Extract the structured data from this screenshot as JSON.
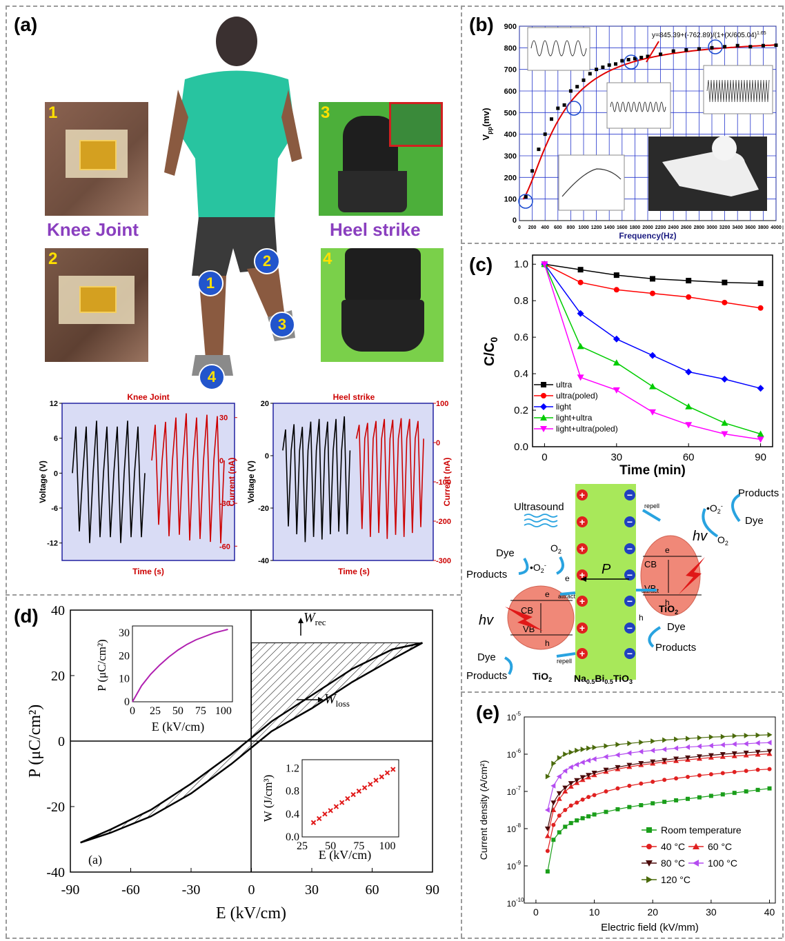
{
  "labels": {
    "a": "(a)",
    "b": "(b)",
    "c": "(c)",
    "d": "(d)",
    "e": "(e)"
  },
  "panel_a": {
    "photo_left_title": "Knee Joint",
    "photo_right_title": "Heel strike",
    "photo_numbers": [
      "1",
      "2",
      "3",
      "4"
    ],
    "body_markers": [
      "1",
      "2",
      "3",
      "4"
    ]
  },
  "panel_b_photo": {
    "inset_count": 4
  },
  "mechanism": {
    "ultrasound": "Ultrasound",
    "dye": "Dye",
    "products": "Products",
    "o2": "O",
    "o2_sub": "2",
    "o2_radical": "•O",
    "o2_radical_sub": "2",
    "o2_radical_sup": "-",
    "cb": "CB",
    "vb": "VB",
    "tio2": "TiO",
    "tio2_sub": "2",
    "hv": "hv",
    "p": "P",
    "e_minus": "e",
    "h_plus": "h",
    "repell": "repell",
    "attract": "attract",
    "nbt": "Na",
    "nbt_sub1": "0.5",
    "nbt_mid": "Bi",
    "nbt_sub2": "0.5",
    "nbt_end": "TiO",
    "nbt_sub3": "3"
  },
  "chart_data": [
    {
      "id": "a-knee",
      "type": "line",
      "title": "Knee Joint",
      "xlabel": "Time (s)",
      "ylabel": "Voltage (V)",
      "ylabel_right": "Current (nA)",
      "ylim": [
        -15,
        12
      ],
      "yticks": [
        12,
        6,
        0,
        -6,
        -12
      ],
      "ylim_right": [
        -70,
        40
      ],
      "yticks_right": [
        30,
        0,
        -30,
        -60
      ],
      "colors": {
        "voltage": "#000000",
        "current": "#cc0000",
        "bg": "#d9dcf5"
      },
      "series": [
        {
          "name": "Voltage",
          "values": [
            0,
            8,
            -10,
            0,
            8,
            -12,
            0,
            9,
            -11,
            0,
            8,
            -11,
            0,
            8,
            -12,
            0,
            9,
            -11,
            0,
            8,
            -11,
            0
          ]
        },
        {
          "name": "Current",
          "values": [
            0,
            25,
            -45,
            0,
            27,
            -53,
            0,
            30,
            -52,
            0,
            33,
            -56,
            0,
            30,
            -55,
            0,
            32,
            -57,
            0,
            31,
            -58,
            0
          ]
        }
      ]
    },
    {
      "id": "a-heel",
      "type": "line",
      "title": "Heel strike",
      "xlabel": "Time (s)",
      "ylabel": "Voltage (V)",
      "ylabel_right": "Current (nA)",
      "ylim": [
        -40,
        20
      ],
      "yticks": [
        20,
        0,
        -20,
        -40
      ],
      "ylim_right": [
        -300,
        100
      ],
      "yticks_right": [
        100,
        0,
        -100,
        -200,
        -300
      ],
      "colors": {
        "voltage": "#000000",
        "current": "#cc0000",
        "bg": "#d9dcf5"
      },
      "series": [
        {
          "name": "Voltage",
          "values": [
            2,
            10,
            -27,
            2,
            12,
            -30,
            2,
            11,
            -33,
            2,
            13,
            -31,
            2,
            14,
            -32,
            2,
            13,
            -30,
            2,
            14,
            -29,
            2,
            15,
            -30,
            2
          ]
        },
        {
          "name": "Current",
          "values": [
            10,
            45,
            -220,
            10,
            50,
            -240,
            10,
            55,
            -230,
            10,
            60,
            -245,
            10,
            58,
            -235,
            10,
            62,
            -240,
            10,
            60,
            -230,
            10,
            55,
            -215,
            10
          ]
        }
      ]
    },
    {
      "id": "b",
      "type": "scatter",
      "xlabel": "Frequency(Hz)",
      "ylabel": "V",
      "ylabel_sub": "pp",
      "ylabel_unit": "(mv)",
      "xlim": [
        0,
        4000
      ],
      "ylim": [
        0,
        900
      ],
      "xticks": [
        0,
        200,
        400,
        600,
        800,
        1000,
        1200,
        1400,
        1600,
        1800,
        2000,
        2200,
        2400,
        2600,
        2800,
        3000,
        3200,
        3400,
        3600,
        3800,
        4000
      ],
      "yticks": [
        100,
        200,
        300,
        400,
        500,
        600,
        700,
        800,
        900
      ],
      "fit_equation": "y=845.39+(-762.89)/(1+(X/605.04)",
      "fit_exponent": "1.65",
      "colors": {
        "points": "#000000",
        "fit": "#e00000",
        "grid": "#2233cc"
      },
      "x": [
        100,
        200,
        300,
        400,
        500,
        600,
        700,
        800,
        900,
        1000,
        1100,
        1200,
        1300,
        1400,
        1500,
        1600,
        1700,
        1800,
        1900,
        2000,
        2200,
        2400,
        2600,
        2800,
        3000,
        3200,
        3400,
        3600,
        3800,
        4000
      ],
      "y": [
        110,
        230,
        330,
        400,
        470,
        520,
        535,
        600,
        620,
        650,
        680,
        700,
        710,
        720,
        725,
        740,
        745,
        750,
        755,
        760,
        770,
        785,
        790,
        795,
        800,
        805,
        810,
        805,
        810,
        812
      ]
    },
    {
      "id": "c",
      "type": "line",
      "xlabel": "Time (min)",
      "ylabel": "C/C",
      "ylabel_sub": "0",
      "xlim": [
        -5,
        95
      ],
      "ylim": [
        0.0,
        1.05
      ],
      "xticks": [
        0,
        30,
        60,
        90
      ],
      "yticks": [
        0.0,
        0.2,
        0.4,
        0.6,
        0.8,
        1.0
      ],
      "x": [
        0,
        15,
        30,
        45,
        60,
        75,
        90
      ],
      "series": [
        {
          "name": "ultra",
          "color": "#000000",
          "marker": "square",
          "values": [
            1.0,
            0.97,
            0.94,
            0.92,
            0.91,
            0.9,
            0.895
          ]
        },
        {
          "name": "ultra(poled)",
          "color": "#ff0000",
          "marker": "circle",
          "values": [
            1.0,
            0.9,
            0.86,
            0.84,
            0.82,
            0.79,
            0.76
          ]
        },
        {
          "name": "light",
          "color": "#0000ff",
          "marker": "diamond",
          "values": [
            1.0,
            0.73,
            0.59,
            0.5,
            0.41,
            0.37,
            0.32
          ]
        },
        {
          "name": "light+ultra",
          "color": "#00cc00",
          "marker": "triangle-up",
          "values": [
            1.0,
            0.55,
            0.46,
            0.33,
            0.22,
            0.13,
            0.07
          ]
        },
        {
          "name": "light+ultra(poled)",
          "color": "#ff00ff",
          "marker": "triangle-down",
          "values": [
            1.0,
            0.38,
            0.31,
            0.19,
            0.12,
            0.07,
            0.04
          ]
        }
      ]
    },
    {
      "id": "d",
      "type": "line",
      "xlabel": "E (kV/cm)",
      "ylabel": "P (μC/cm²)",
      "xlim": [
        -90,
        90
      ],
      "ylim": [
        -40,
        40
      ],
      "xticks": [
        -90,
        -60,
        -30,
        0,
        30,
        60,
        90
      ],
      "yticks": [
        40,
        20,
        0,
        -20,
        -40
      ],
      "sublabel": "(a)",
      "annotations": [
        "W",
        "rec",
        "W",
        "loss"
      ],
      "series": [
        {
          "name": "upper",
          "values_x": [
            -85,
            -70,
            -50,
            -30,
            -10,
            0,
            10,
            30,
            50,
            70,
            85
          ],
          "values_y": [
            -31,
            -27,
            -21,
            -13,
            -4,
            1,
            6,
            14,
            22,
            28,
            30
          ]
        },
        {
          "name": "lower",
          "values_x": [
            -85,
            -70,
            -50,
            -30,
            -10,
            0,
            10,
            30,
            50,
            70,
            85
          ],
          "values_y": [
            -31,
            -28,
            -23,
            -16,
            -7,
            -2,
            3,
            10,
            18,
            25,
            30
          ]
        }
      ],
      "insets": [
        {
          "type": "line",
          "xlabel": "E (kV/cm)",
          "ylabel": "P (μC/cm²)",
          "xticks": [
            0,
            25,
            50,
            75,
            100
          ],
          "yticks": [
            0,
            10,
            20,
            30
          ],
          "xlim": [
            0,
            110
          ],
          "ylim": [
            0,
            33
          ],
          "x": [
            0,
            10,
            20,
            30,
            40,
            50,
            60,
            70,
            80,
            90,
            100,
            105
          ],
          "y": [
            0,
            7,
            12,
            16,
            19.5,
            22.5,
            25,
            27,
            28.5,
            30,
            31,
            31.5
          ]
        },
        {
          "type": "scatter",
          "xlabel": "E (kV/cm)",
          "ylabel": "W (J/cm³)",
          "xticks": [
            25,
            50,
            75,
            100
          ],
          "yticks": [
            0.0,
            0.4,
            0.8,
            1.2
          ],
          "xlim": [
            25,
            110
          ],
          "ylim": [
            0,
            1.35
          ],
          "x": [
            35,
            40,
            45,
            50,
            55,
            60,
            65,
            70,
            75,
            80,
            85,
            90,
            95,
            100,
            105
          ],
          "y": [
            0.25,
            0.32,
            0.4,
            0.46,
            0.53,
            0.6,
            0.67,
            0.74,
            0.8,
            0.86,
            0.92,
            0.99,
            1.05,
            1.12,
            1.18
          ]
        }
      ]
    },
    {
      "id": "e",
      "type": "line",
      "xlabel": "Electric field (kV/mm)",
      "ylabel": "Current density (A/cm²)",
      "yscale": "log",
      "xlim": [
        -2,
        41
      ],
      "ylim_exp": [
        -10,
        -5
      ],
      "xticks": [
        0,
        10,
        20,
        30,
        40
      ],
      "x": [
        2,
        3,
        4,
        5,
        6,
        7,
        8,
        9,
        10,
        12,
        14,
        16,
        18,
        20,
        22,
        24,
        26,
        28,
        30,
        32,
        34,
        36,
        38,
        40
      ],
      "series": [
        {
          "name": "Room temperature",
          "color": "#1a9e1a",
          "marker": "square",
          "exp": [
            -9.15,
            -8.3,
            -8.1,
            -7.95,
            -7.85,
            -7.78,
            -7.72,
            -7.67,
            -7.62,
            -7.55,
            -7.48,
            -7.42,
            -7.37,
            -7.32,
            -7.28,
            -7.24,
            -7.2,
            -7.16,
            -7.12,
            -7.08,
            -7.04,
            -7.0,
            -6.96,
            -6.92
          ]
        },
        {
          "name": "40 °C",
          "color": "#e02020",
          "marker": "circle",
          "exp": [
            -8.6,
            -7.9,
            -7.65,
            -7.5,
            -7.38,
            -7.3,
            -7.22,
            -7.15,
            -7.1,
            -7.0,
            -6.92,
            -6.85,
            -6.79,
            -6.74,
            -6.69,
            -6.65,
            -6.61,
            -6.57,
            -6.54,
            -6.51,
            -6.48,
            -6.45,
            -6.42,
            -6.4
          ]
        },
        {
          "name": "60 °C",
          "color": "#e02020",
          "marker": "triangle-up",
          "exp": [
            -8.2,
            -7.5,
            -7.2,
            -7.0,
            -6.87,
            -6.77,
            -6.69,
            -6.62,
            -6.56,
            -6.47,
            -6.4,
            -6.34,
            -6.29,
            -6.25,
            -6.21,
            -6.18,
            -6.15,
            -6.12,
            -6.09,
            -6.07,
            -6.05,
            -6.03,
            -6.01,
            -5.99
          ]
        },
        {
          "name": "80 °C",
          "color": "#4a0a0a",
          "marker": "triangle-down",
          "exp": [
            -8.0,
            -7.3,
            -7.05,
            -6.9,
            -6.78,
            -6.7,
            -6.62,
            -6.56,
            -6.5,
            -6.42,
            -6.35,
            -6.29,
            -6.24,
            -6.2,
            -6.16,
            -6.12,
            -6.09,
            -6.06,
            -6.03,
            -6.0,
            -5.98,
            -5.96,
            -5.94,
            -5.92
          ]
        },
        {
          "name": "100 °C",
          "color": "#b44cf0",
          "marker": "triangle-left",
          "exp": [
            -7.5,
            -6.85,
            -6.6,
            -6.45,
            -6.35,
            -6.28,
            -6.22,
            -6.17,
            -6.13,
            -6.07,
            -6.02,
            -5.97,
            -5.93,
            -5.9,
            -5.87,
            -5.84,
            -5.81,
            -5.79,
            -5.77,
            -5.75,
            -5.73,
            -5.72,
            -5.7,
            -5.69
          ]
        },
        {
          "name": "120 °C",
          "color": "#4a6a0a",
          "marker": "triangle-right",
          "exp": [
            -6.6,
            -6.25,
            -6.1,
            -6.0,
            -5.95,
            -5.9,
            -5.87,
            -5.84,
            -5.82,
            -5.78,
            -5.74,
            -5.71,
            -5.68,
            -5.65,
            -5.62,
            -5.6,
            -5.58,
            -5.56,
            -5.54,
            -5.53,
            -5.51,
            -5.5,
            -5.49,
            -5.48
          ]
        }
      ]
    }
  ]
}
